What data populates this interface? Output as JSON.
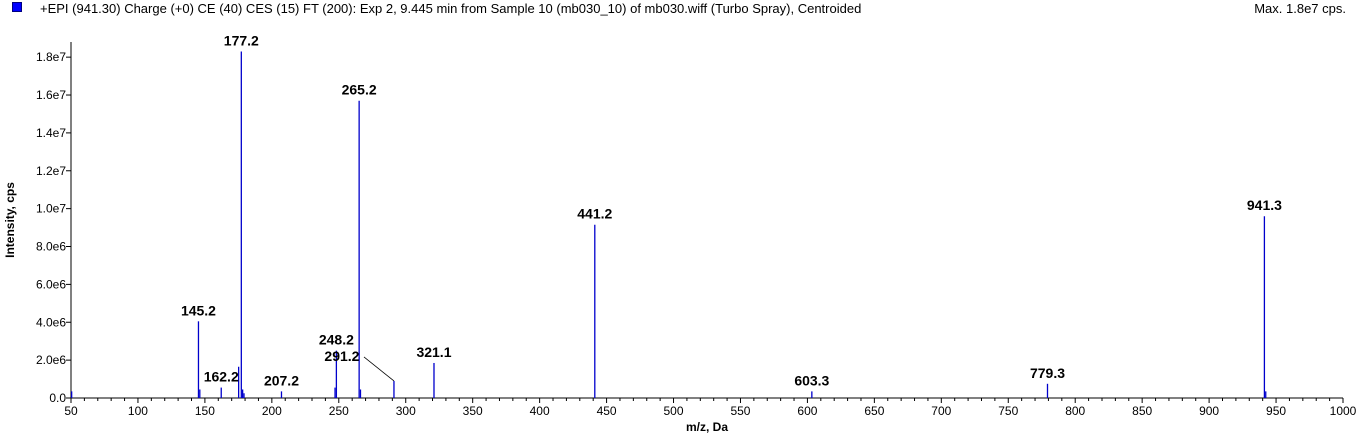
{
  "header": {
    "title": "+EPI (941.30) Charge (+0) CE (40) CES (15) FT (200): Exp 2, 9.445 min from Sample 10 (mb030_10) of mb030.wiff (Turbo Spray), Centroided",
    "max_label": "Max. 1.8e7 cps."
  },
  "colors": {
    "series": "#0000cc",
    "axis": "#000000",
    "swatch": "#0000ff"
  },
  "chart_data": {
    "type": "bar",
    "title": "+EPI (941.30) Charge (+0) CE (40) CES (15) FT (200): Exp 2, 9.445 min from Sample 10 (mb030_10) of mb030.wiff (Turbo Spray), Centroided",
    "xlabel": "m/z, Da",
    "ylabel": "Intensity, cps",
    "xlim": [
      50,
      1000
    ],
    "ylim": [
      0,
      18800000
    ],
    "x_ticks": [
      50,
      100,
      150,
      200,
      250,
      300,
      350,
      400,
      450,
      500,
      550,
      600,
      650,
      700,
      750,
      800,
      850,
      900,
      950,
      1000
    ],
    "x_tick_labels": [
      "50",
      "100",
      "150",
      "200",
      "250",
      "300",
      "350",
      "400",
      "450",
      "500",
      "550",
      "600",
      "650",
      "700",
      "750",
      "800",
      "850",
      "900",
      "950",
      "1000"
    ],
    "y_ticks": [
      0,
      2000000,
      4000000,
      6000000,
      8000000,
      10000000,
      12000000,
      14000000,
      16000000,
      18000000
    ],
    "y_tick_labels": [
      "0.0",
      "2.0e6",
      "4.0e6",
      "6.0e6",
      "8.0e6",
      "1.0e7",
      "1.2e7",
      "1.4e7",
      "1.6e7",
      "1.8e7"
    ],
    "grid": false,
    "legend": "none",
    "peaks": [
      {
        "mz": 50.5,
        "intensity": 350000
      },
      {
        "mz": 145.2,
        "intensity": 4050000,
        "label": "145.2"
      },
      {
        "mz": 146.2,
        "intensity": 450000
      },
      {
        "mz": 162.2,
        "intensity": 550000,
        "label": "162.2"
      },
      {
        "mz": 175.2,
        "intensity": 1650000
      },
      {
        "mz": 177.2,
        "intensity": 18300000,
        "label": "177.2"
      },
      {
        "mz": 178.2,
        "intensity": 450000
      },
      {
        "mz": 179.2,
        "intensity": 250000
      },
      {
        "mz": 207.2,
        "intensity": 350000,
        "label": "207.2"
      },
      {
        "mz": 247.2,
        "intensity": 550000
      },
      {
        "mz": 248.2,
        "intensity": 2500000,
        "label": "248.2"
      },
      {
        "mz": 265.2,
        "intensity": 15700000,
        "label": "265.2"
      },
      {
        "mz": 266.2,
        "intensity": 450000
      },
      {
        "mz": 291.2,
        "intensity": 900000,
        "label": "291.2",
        "label_dx": -52,
        "label_dy": -14
      },
      {
        "mz": 321.1,
        "intensity": 1850000,
        "label": "321.1"
      },
      {
        "mz": 441.2,
        "intensity": 9150000,
        "label": "441.2"
      },
      {
        "mz": 603.3,
        "intensity": 350000,
        "label": "603.3"
      },
      {
        "mz": 779.3,
        "intensity": 750000,
        "label": "779.3"
      },
      {
        "mz": 941.3,
        "intensity": 9600000,
        "label": "941.3"
      },
      {
        "mz": 942.3,
        "intensity": 350000
      }
    ]
  }
}
